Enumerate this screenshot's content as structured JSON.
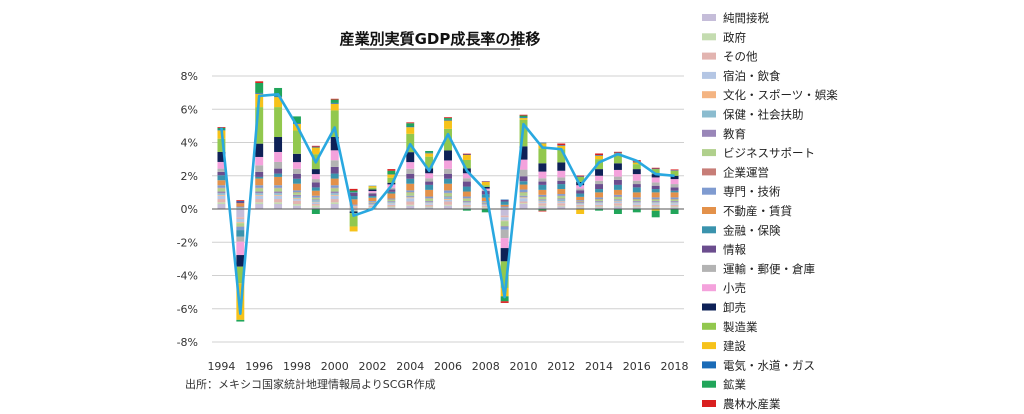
{
  "chart_data": {
    "type": "bar",
    "title": "産業別実質GDP成長率の推移",
    "source": "出所：メキシコ国家統計地理情報局よりSCGR作成",
    "x": [
      1994,
      1995,
      1996,
      1997,
      1998,
      1999,
      2000,
      2001,
      2002,
      2003,
      2004,
      2005,
      2006,
      2007,
      2008,
      2009,
      2010,
      2011,
      2012,
      2013,
      2014,
      2015,
      2016,
      2017,
      2018
    ],
    "x_tick_labels": [
      "1994",
      "1996",
      "1998",
      "2000",
      "2002",
      "2004",
      "2006",
      "2008",
      "2010",
      "2012",
      "2014",
      "2016",
      "2018"
    ],
    "ylim": [
      -8,
      8
    ],
    "y_ticks": [
      -8,
      -6,
      -4,
      -2,
      0,
      2,
      4,
      6,
      8
    ],
    "y_tick_labels": [
      "-8%",
      "-6%",
      "-4%",
      "-2%",
      "0%",
      "2%",
      "4%",
      "6%",
      "8%"
    ],
    "grid": true,
    "legend_position": "right",
    "series": [
      {
        "name": "純間接税",
        "color": "#c5bdd9",
        "values": [
          0.3,
          -0.5,
          0.3,
          0.3,
          0.2,
          0.1,
          0.3,
          -0.1,
          0.05,
          0.1,
          0.2,
          0.1,
          0.2,
          0.1,
          0.05,
          -0.4,
          0.3,
          0.15,
          0.15,
          0.1,
          0.1,
          0.15,
          0.1,
          0.1,
          0.1
        ]
      },
      {
        "name": "政府",
        "color": "#c4dcb0",
        "values": [
          0.1,
          0.05,
          0.1,
          0.1,
          0.1,
          0.1,
          0.1,
          0.05,
          0.05,
          0.05,
          0.05,
          0.05,
          0.05,
          0.05,
          0.05,
          0.05,
          0.05,
          0.05,
          0.05,
          0.05,
          0.05,
          0.05,
          0.05,
          0.05,
          0.05
        ]
      },
      {
        "name": "その他",
        "color": "#e2b4b0",
        "values": [
          0.2,
          -0.1,
          0.2,
          0.2,
          0.2,
          0.1,
          0.2,
          0.1,
          0.1,
          0.1,
          0.2,
          0.1,
          0.2,
          0.1,
          0.1,
          -0.1,
          0.1,
          0.15,
          0.15,
          0.1,
          0.1,
          0.15,
          0.1,
          0.1,
          0.1
        ]
      },
      {
        "name": "宿泊・飲食",
        "color": "#b4c6e4",
        "values": [
          0.2,
          -0.2,
          0.2,
          0.2,
          0.1,
          0.1,
          0.2,
          0.0,
          0.05,
          0.1,
          0.2,
          0.1,
          0.1,
          0.1,
          0.05,
          -0.2,
          0.2,
          0.1,
          0.1,
          0.05,
          0.1,
          0.1,
          0.1,
          0.1,
          0.1
        ]
      },
      {
        "name": "文化・スポーツ・娯楽",
        "color": "#f4b482",
        "values": [
          0.05,
          -0.05,
          0.05,
          0.05,
          0.05,
          0.03,
          0.05,
          0.02,
          0.02,
          0.02,
          0.05,
          0.03,
          0.05,
          0.03,
          0.02,
          -0.03,
          0.05,
          0.03,
          0.03,
          0.02,
          0.03,
          0.03,
          0.03,
          0.03,
          0.03
        ]
      },
      {
        "name": "保健・社会扶助",
        "color": "#8bbccf",
        "values": [
          0.1,
          0.05,
          0.1,
          0.1,
          0.1,
          0.1,
          0.1,
          0.05,
          0.05,
          0.05,
          0.05,
          0.05,
          0.1,
          0.05,
          0.05,
          0.05,
          0.05,
          0.05,
          0.1,
          0.05,
          0.05,
          0.05,
          0.05,
          0.05,
          0.05
        ]
      },
      {
        "name": "教育",
        "color": "#9986b8",
        "values": [
          0.1,
          0.05,
          0.1,
          0.1,
          0.1,
          0.05,
          0.1,
          0.05,
          0.05,
          0.05,
          0.05,
          0.05,
          0.05,
          0.05,
          0.05,
          0.05,
          0.05,
          0.05,
          0.05,
          0.05,
          0.05,
          0.05,
          0.05,
          0.05,
          0.05
        ]
      },
      {
        "name": "ビジネスサポート",
        "color": "#b0d08c",
        "values": [
          0.2,
          -0.2,
          0.2,
          0.2,
          0.15,
          0.1,
          0.2,
          -0.05,
          0.05,
          0.1,
          0.2,
          0.15,
          0.2,
          0.15,
          0.05,
          -0.3,
          0.2,
          0.15,
          0.15,
          0.05,
          0.1,
          0.15,
          0.1,
          0.1,
          0.1
        ]
      },
      {
        "name": "企業運営",
        "color": "#c77d77",
        "values": [
          0.03,
          -0.02,
          0.03,
          0.03,
          0.02,
          0.02,
          0.03,
          0.01,
          0.01,
          0.01,
          0.02,
          0.02,
          0.02,
          0.02,
          0.01,
          -0.02,
          0.02,
          0.02,
          0.02,
          0.01,
          0.02,
          0.02,
          0.02,
          0.02,
          0.02
        ]
      },
      {
        "name": "専門・技術",
        "color": "#7f9bd0",
        "values": [
          0.15,
          -0.2,
          0.15,
          0.15,
          0.1,
          0.1,
          0.15,
          0.0,
          0.05,
          0.05,
          0.1,
          0.1,
          0.15,
          0.1,
          0.05,
          -0.2,
          0.15,
          0.1,
          0.1,
          0.05,
          0.1,
          0.1,
          0.1,
          0.1,
          0.1
        ]
      },
      {
        "name": "不動産・賃貸",
        "color": "#e3914a",
        "values": [
          0.3,
          0.2,
          0.4,
          0.5,
          0.4,
          0.3,
          0.4,
          0.3,
          0.2,
          0.3,
          0.4,
          0.4,
          0.4,
          0.3,
          0.2,
          0.1,
          0.3,
          0.3,
          0.3,
          0.2,
          0.3,
          0.3,
          0.3,
          0.3,
          0.3
        ]
      },
      {
        "name": "金融・保険",
        "color": "#3a93ad",
        "values": [
          0.3,
          -0.4,
          0.1,
          0.2,
          0.3,
          0.2,
          0.3,
          0.2,
          0.1,
          0.1,
          0.3,
          0.3,
          0.3,
          0.3,
          0.2,
          0.2,
          0.2,
          0.3,
          0.3,
          0.2,
          0.2,
          0.3,
          0.3,
          0.2,
          0.1
        ]
      },
      {
        "name": "情報",
        "color": "#6b4d8e",
        "values": [
          0.2,
          0.1,
          0.3,
          0.3,
          0.3,
          0.3,
          0.4,
          0.2,
          0.15,
          0.15,
          0.3,
          0.2,
          0.3,
          0.3,
          0.2,
          0.1,
          0.3,
          0.2,
          0.2,
          0.2,
          0.3,
          0.3,
          0.2,
          0.2,
          0.2
        ]
      },
      {
        "name": "運輸・郵便・倉庫",
        "color": "#b3b3b3",
        "values": [
          0.2,
          -0.3,
          0.4,
          0.4,
          0.3,
          0.2,
          0.4,
          0.0,
          0.05,
          0.1,
          0.3,
          0.2,
          0.3,
          0.2,
          0.05,
          -0.5,
          0.4,
          0.2,
          0.2,
          0.1,
          0.2,
          0.2,
          0.2,
          0.2,
          0.2
        ]
      },
      {
        "name": "小売",
        "color": "#f4a2dc",
        "values": [
          0.4,
          -0.8,
          0.5,
          0.6,
          0.4,
          0.3,
          0.6,
          0.0,
          0.1,
          0.2,
          0.4,
          0.3,
          0.5,
          0.3,
          0.1,
          -0.6,
          0.6,
          0.4,
          0.4,
          0.2,
          0.3,
          0.4,
          0.4,
          0.3,
          0.3
        ]
      },
      {
        "name": "卸売",
        "color": "#0e2157",
        "values": [
          0.6,
          -0.7,
          0.8,
          0.9,
          0.5,
          0.3,
          0.8,
          -0.1,
          0.1,
          0.1,
          0.6,
          0.3,
          0.6,
          0.3,
          0.1,
          -0.8,
          0.8,
          0.5,
          0.5,
          0.2,
          0.4,
          0.4,
          0.3,
          0.2,
          0.2
        ]
      },
      {
        "name": "製造業",
        "color": "#92c84e",
        "values": [
          0.8,
          -1.0,
          2.2,
          1.8,
          1.4,
          0.9,
          1.6,
          -0.8,
          0.1,
          0.3,
          1.1,
          0.7,
          1.3,
          0.5,
          0.1,
          -1.6,
          1.6,
          0.9,
          0.8,
          0.3,
          0.6,
          0.5,
          0.3,
          0.3,
          0.3
        ]
      },
      {
        "name": "建設",
        "color": "#f6c21a",
        "values": [
          0.5,
          -2.2,
          0.8,
          0.6,
          0.4,
          0.4,
          0.4,
          -0.3,
          0.1,
          0.2,
          0.4,
          0.2,
          0.5,
          0.3,
          0.2,
          -0.5,
          0.1,
          0.3,
          0.2,
          -0.3,
          0.2,
          0.1,
          0.1,
          -0.1,
          0.0
        ]
      },
      {
        "name": "電気・水道・ガス",
        "color": "#1a6bb7",
        "values": [
          0.05,
          0.03,
          0.05,
          0.05,
          0.05,
          0.05,
          0.05,
          0.03,
          0.02,
          0.02,
          0.04,
          0.04,
          0.05,
          0.03,
          0.02,
          0.02,
          0.05,
          0.04,
          0.04,
          0.03,
          0.04,
          0.04,
          0.04,
          0.03,
          0.03
        ]
      },
      {
        "name": "鉱業",
        "color": "#21a55a",
        "values": [
          0.1,
          -0.1,
          0.6,
          0.5,
          0.4,
          -0.3,
          0.2,
          0.1,
          0.0,
          0.2,
          0.2,
          0.1,
          0.1,
          -0.1,
          -0.2,
          -0.3,
          0.1,
          -0.1,
          0.0,
          0.0,
          -0.1,
          -0.3,
          -0.2,
          -0.4,
          -0.3
        ]
      },
      {
        "name": "農林水産業",
        "color": "#d92020",
        "values": [
          0.05,
          0.05,
          0.1,
          0.0,
          0.0,
          0.05,
          0.05,
          0.1,
          0.0,
          0.1,
          0.05,
          0.0,
          0.05,
          0.05,
          0.02,
          -0.1,
          0.05,
          -0.05,
          0.1,
          0.05,
          0.1,
          0.05,
          0.1,
          0.05,
          0.05
        ]
      }
    ],
    "line": {
      "name": "実質GDP成長率",
      "color": "#29a8e0",
      "values": [
        4.9,
        -6.3,
        6.8,
        6.9,
        5.0,
        2.8,
        4.9,
        -0.4,
        0.0,
        1.4,
        3.9,
        2.3,
        4.5,
        2.3,
        1.1,
        -5.3,
        5.1,
        3.7,
        3.6,
        1.4,
        2.8,
        3.3,
        2.9,
        2.1,
        2.0
      ]
    }
  }
}
